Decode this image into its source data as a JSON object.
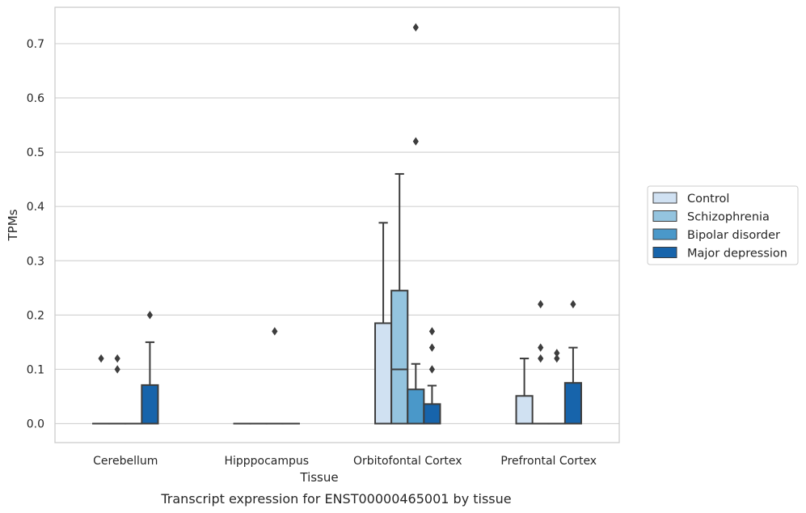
{
  "chart_data": {
    "type": "box",
    "title": "",
    "caption": "Transcript expression for ENST00000465001 by tissue",
    "xlabel": "Tissue",
    "ylabel": "TPMs",
    "ylim": [
      -0.035,
      0.767
    ],
    "yticks": [
      0.0,
      0.1,
      0.2,
      0.3,
      0.4,
      0.5,
      0.6,
      0.7
    ],
    "ytick_labels": [
      "0.0",
      "0.1",
      "0.2",
      "0.3",
      "0.4",
      "0.5",
      "0.6",
      "0.7"
    ],
    "grid": "horizontal",
    "legend_position": "right",
    "categories": [
      "Cerebellum",
      "Hipppocampus",
      "Orbitofontal Cortex",
      "Prefrontal Cortex"
    ],
    "series": [
      {
        "name": "Control",
        "color": "#d0e1f2",
        "boxes": [
          {
            "q1": 0,
            "median": 0,
            "q3": 0,
            "whisker_low": 0,
            "whisker_high": 0,
            "outliers": [
              0.12
            ]
          },
          {
            "q1": 0,
            "median": 0,
            "q3": 0,
            "whisker_low": 0,
            "whisker_high": 0,
            "outliers": []
          },
          {
            "q1": 0,
            "median": 0,
            "q3": 0.185,
            "whisker_low": 0,
            "whisker_high": 0.37,
            "outliers": []
          },
          {
            "q1": 0,
            "median": 0,
            "q3": 0.051,
            "whisker_low": 0,
            "whisker_high": 0.12,
            "outliers": []
          }
        ]
      },
      {
        "name": "Schizophrenia",
        "color": "#94c4df",
        "boxes": [
          {
            "q1": 0,
            "median": 0,
            "q3": 0,
            "whisker_low": 0,
            "whisker_high": 0,
            "outliers": [
              0.1,
              0.12
            ]
          },
          {
            "q1": 0,
            "median": 0,
            "q3": 0,
            "whisker_low": 0,
            "whisker_high": 0,
            "outliers": []
          },
          {
            "q1": 0,
            "median": 0.1,
            "q3": 0.245,
            "whisker_low": 0,
            "whisker_high": 0.46,
            "outliers": []
          },
          {
            "q1": 0,
            "median": 0,
            "q3": 0,
            "whisker_low": 0,
            "whisker_high": 0,
            "outliers": [
              0.12,
              0.14,
              0.22
            ]
          }
        ]
      },
      {
        "name": "Bipolar disorder",
        "color": "#4a98c9",
        "boxes": [
          {
            "q1": 0,
            "median": 0,
            "q3": 0,
            "whisker_low": 0,
            "whisker_high": 0,
            "outliers": []
          },
          {
            "q1": 0,
            "median": 0,
            "q3": 0,
            "whisker_low": 0,
            "whisker_high": 0,
            "outliers": [
              0.17
            ]
          },
          {
            "q1": 0,
            "median": 0,
            "q3": 0.063,
            "whisker_low": 0,
            "whisker_high": 0.11,
            "outliers": [
              0.52,
              0.73
            ]
          },
          {
            "q1": 0,
            "median": 0,
            "q3": 0,
            "whisker_low": 0,
            "whisker_high": 0,
            "outliers": [
              0.12,
              0.13
            ]
          }
        ]
      },
      {
        "name": "Major depression",
        "color": "#1764ab",
        "boxes": [
          {
            "q1": 0,
            "median": 0,
            "q3": 0.071,
            "whisker_low": 0,
            "whisker_high": 0.15,
            "outliers": [
              0.2
            ]
          },
          {
            "q1": 0,
            "median": 0,
            "q3": 0,
            "whisker_low": 0,
            "whisker_high": 0,
            "outliers": []
          },
          {
            "q1": 0,
            "median": 0,
            "q3": 0.036,
            "whisker_low": 0,
            "whisker_high": 0.07,
            "outliers": [
              0.1,
              0.14,
              0.17
            ]
          },
          {
            "q1": 0,
            "median": 0,
            "q3": 0.075,
            "whisker_low": 0,
            "whisker_high": 0.14,
            "outliers": [
              0.22
            ]
          }
        ]
      }
    ]
  }
}
